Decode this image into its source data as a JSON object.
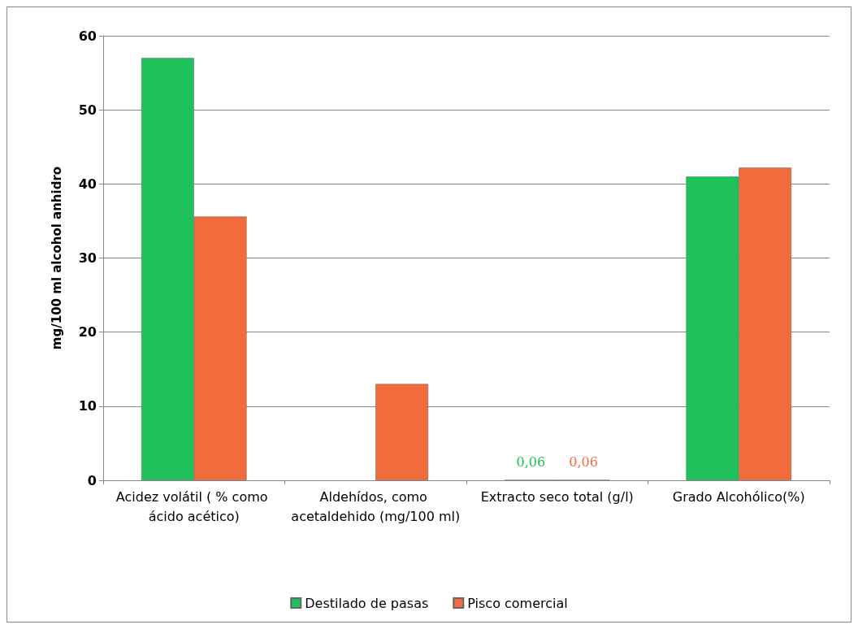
{
  "chart_data": {
    "type": "bar",
    "ylabel": "mg/100 ml alcohol anhidro",
    "categories": [
      "Acidez volátil ( % como ácido acético)",
      "Aldehídos, como acetaldehido (mg/100 ml)",
      "Extracto seco total (g/l)",
      "Grado Alcohólico(%)"
    ],
    "series": [
      {
        "name": "Destilado de pasas",
        "color": "#1fc25a",
        "values": [
          57,
          null,
          0.06,
          41
        ],
        "value_labels": [
          null,
          null,
          "0,06",
          null
        ]
      },
      {
        "name": "Pisco comercial",
        "color": "#f26b3a",
        "values": [
          35.6,
          13,
          0.06,
          42.2
        ],
        "value_labels": [
          null,
          null,
          "0,06",
          null
        ]
      }
    ],
    "ylim": [
      0,
      60
    ],
    "yticks": [
      0,
      10,
      20,
      30,
      40,
      50,
      60
    ],
    "grid": "y",
    "legend": "bottom"
  }
}
